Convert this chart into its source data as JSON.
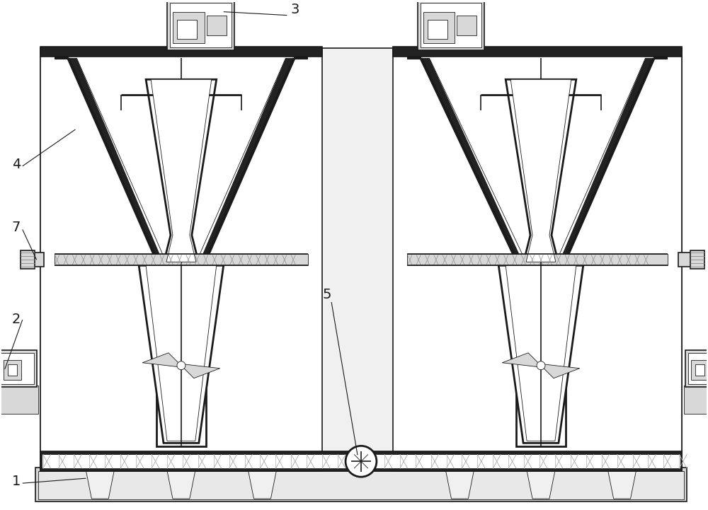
{
  "bg": "#ffffff",
  "lc": "#1a1a1a",
  "lc_thin": 0.6,
  "lc_med": 1.2,
  "lc_thick": 2.0,
  "lc_xthick": 3.0,
  "gray_light": "#f0f0f0",
  "gray_mid": "#d8d8d8",
  "gray_dark": "#888888",
  "black_fill": "#222222",
  "label_fs": 14
}
